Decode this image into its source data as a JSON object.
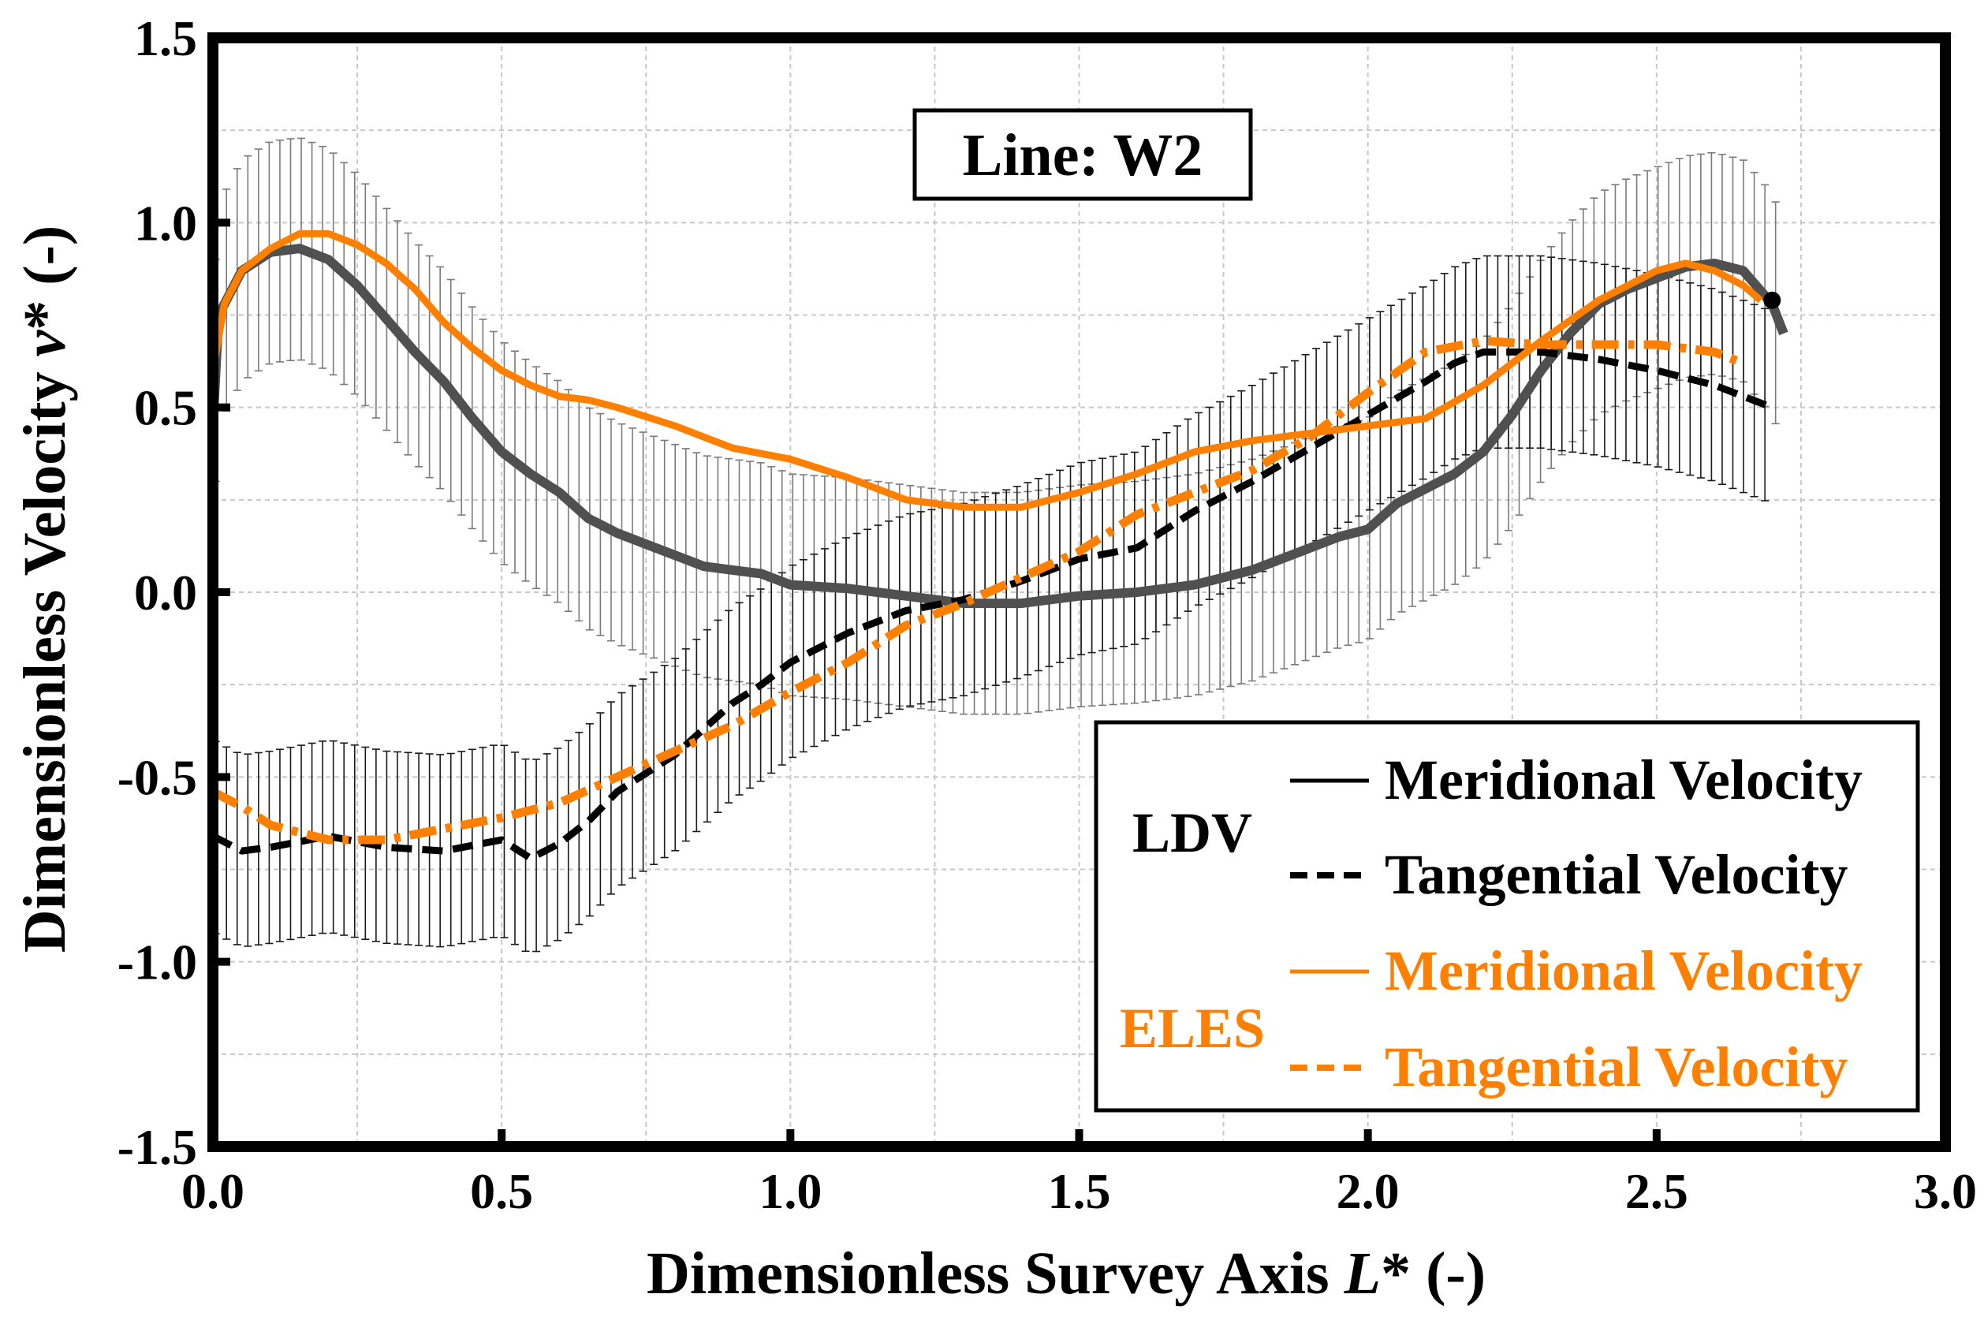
{
  "chart_data": {
    "type": "line",
    "annotation": "Line:  W2",
    "xlabel_main": "Dimensionless Survey Axis ",
    "xlabel_var": "L",
    "xlabel_tail": "* (-)",
    "ylabel_main": "Dimensionless Velocity ",
    "ylabel_var": "v",
    "ylabel_tail": "* (-)",
    "xlim": [
      0.0,
      3.0
    ],
    "ylim": [
      -1.5,
      1.5
    ],
    "x_ticks": [
      0.0,
      0.5,
      1.0,
      1.5,
      2.0,
      2.5,
      3.0
    ],
    "x_tick_labels": [
      "0.0",
      "0.5",
      "1.0",
      "1.5",
      "2.0",
      "2.5",
      "3.0"
    ],
    "y_ticks": [
      -1.5,
      -1.0,
      -0.5,
      0.0,
      0.5,
      1.0,
      1.5
    ],
    "y_tick_labels": [
      "-1.5",
      "-1.0",
      "-0.5",
      "0.0",
      "0.5",
      "1.0",
      "1.5"
    ],
    "grid": true,
    "legend": {
      "placement": "bottom-right",
      "groups": [
        {
          "label": "LDV",
          "color": "#000000",
          "entries": [
            "Meridional Velocity",
            "Tangential Velocity"
          ]
        },
        {
          "label": "ELES",
          "color": "#ff8000",
          "entries": [
            "Meridional Velocity",
            "Tangential Velocity"
          ]
        }
      ]
    },
    "series": [
      {
        "name": "LDV Meridional Velocity",
        "color": "#505050",
        "style": "solid",
        "error": 0.3,
        "points": [
          [
            0.0,
            0.45
          ],
          [
            0.01,
            0.75
          ],
          [
            0.05,
            0.87
          ],
          [
            0.1,
            0.92
          ],
          [
            0.15,
            0.93
          ],
          [
            0.2,
            0.9
          ],
          [
            0.25,
            0.83
          ],
          [
            0.3,
            0.74
          ],
          [
            0.35,
            0.65
          ],
          [
            0.4,
            0.57
          ],
          [
            0.45,
            0.47
          ],
          [
            0.5,
            0.38
          ],
          [
            0.55,
            0.32
          ],
          [
            0.6,
            0.27
          ],
          [
            0.65,
            0.2
          ],
          [
            0.7,
            0.16
          ],
          [
            0.75,
            0.13
          ],
          [
            0.8,
            0.1
          ],
          [
            0.85,
            0.07
          ],
          [
            0.9,
            0.06
          ],
          [
            0.95,
            0.05
          ],
          [
            1.0,
            0.02
          ],
          [
            1.1,
            0.01
          ],
          [
            1.2,
            -0.01
          ],
          [
            1.3,
            -0.03
          ],
          [
            1.4,
            -0.03
          ],
          [
            1.5,
            -0.01
          ],
          [
            1.6,
            0.0
          ],
          [
            1.7,
            0.02
          ],
          [
            1.8,
            0.06
          ],
          [
            1.9,
            0.12
          ],
          [
            1.95,
            0.15
          ],
          [
            2.0,
            0.17
          ],
          [
            2.05,
            0.24
          ],
          [
            2.1,
            0.28
          ],
          [
            2.15,
            0.32
          ],
          [
            2.2,
            0.38
          ],
          [
            2.25,
            0.48
          ],
          [
            2.3,
            0.6
          ],
          [
            2.35,
            0.7
          ],
          [
            2.4,
            0.78
          ],
          [
            2.45,
            0.82
          ],
          [
            2.5,
            0.85
          ],
          [
            2.55,
            0.88
          ],
          [
            2.6,
            0.89
          ],
          [
            2.65,
            0.87
          ],
          [
            2.7,
            0.78
          ],
          [
            2.72,
            0.7
          ]
        ]
      },
      {
        "name": "LDV Tangential Velocity",
        "color": "#000000",
        "style": "dashed",
        "error": 0.26,
        "points": [
          [
            0.0,
            -0.66
          ],
          [
            0.05,
            -0.7
          ],
          [
            0.1,
            -0.69
          ],
          [
            0.2,
            -0.66
          ],
          [
            0.3,
            -0.69
          ],
          [
            0.4,
            -0.7
          ],
          [
            0.5,
            -0.67
          ],
          [
            0.55,
            -0.72
          ],
          [
            0.6,
            -0.68
          ],
          [
            0.65,
            -0.62
          ],
          [
            0.7,
            -0.54
          ],
          [
            0.75,
            -0.49
          ],
          [
            0.8,
            -0.44
          ],
          [
            0.85,
            -0.37
          ],
          [
            0.9,
            -0.3
          ],
          [
            0.95,
            -0.25
          ],
          [
            1.0,
            -0.19
          ],
          [
            1.1,
            -0.11
          ],
          [
            1.2,
            -0.05
          ],
          [
            1.3,
            -0.02
          ],
          [
            1.4,
            0.03
          ],
          [
            1.5,
            0.09
          ],
          [
            1.6,
            0.12
          ],
          [
            1.7,
            0.22
          ],
          [
            1.8,
            0.3
          ],
          [
            1.9,
            0.39
          ],
          [
            2.0,
            0.48
          ],
          [
            2.1,
            0.57
          ],
          [
            2.15,
            0.62
          ],
          [
            2.2,
            0.65
          ],
          [
            2.3,
            0.65
          ],
          [
            2.4,
            0.63
          ],
          [
            2.5,
            0.6
          ],
          [
            2.6,
            0.56
          ],
          [
            2.7,
            0.5
          ]
        ]
      },
      {
        "name": "ELES Meridional Velocity",
        "color": "#ff8000",
        "style": "solid",
        "error": 0,
        "points": [
          [
            0.0,
            0.6
          ],
          [
            0.02,
            0.78
          ],
          [
            0.05,
            0.87
          ],
          [
            0.1,
            0.93
          ],
          [
            0.15,
            0.97
          ],
          [
            0.2,
            0.97
          ],
          [
            0.25,
            0.94
          ],
          [
            0.3,
            0.89
          ],
          [
            0.35,
            0.82
          ],
          [
            0.4,
            0.73
          ],
          [
            0.45,
            0.66
          ],
          [
            0.5,
            0.6
          ],
          [
            0.55,
            0.56
          ],
          [
            0.6,
            0.53
          ],
          [
            0.65,
            0.52
          ],
          [
            0.7,
            0.5
          ],
          [
            0.8,
            0.45
          ],
          [
            0.9,
            0.39
          ],
          [
            1.0,
            0.36
          ],
          [
            1.1,
            0.31
          ],
          [
            1.2,
            0.25
          ],
          [
            1.3,
            0.23
          ],
          [
            1.4,
            0.23
          ],
          [
            1.5,
            0.27
          ],
          [
            1.6,
            0.32
          ],
          [
            1.7,
            0.38
          ],
          [
            1.8,
            0.41
          ],
          [
            1.9,
            0.43
          ],
          [
            2.0,
            0.45
          ],
          [
            2.1,
            0.47
          ],
          [
            2.2,
            0.56
          ],
          [
            2.3,
            0.68
          ],
          [
            2.4,
            0.79
          ],
          [
            2.5,
            0.87
          ],
          [
            2.55,
            0.89
          ],
          [
            2.6,
            0.87
          ],
          [
            2.65,
            0.83
          ],
          [
            2.68,
            0.79
          ]
        ]
      },
      {
        "name": "ELES Tangential Velocity",
        "color": "#ff8000",
        "style": "dashdot",
        "error": 0,
        "points": [
          [
            0.0,
            -0.54
          ],
          [
            0.05,
            -0.58
          ],
          [
            0.1,
            -0.63
          ],
          [
            0.2,
            -0.67
          ],
          [
            0.3,
            -0.67
          ],
          [
            0.4,
            -0.64
          ],
          [
            0.5,
            -0.61
          ],
          [
            0.6,
            -0.57
          ],
          [
            0.7,
            -0.5
          ],
          [
            0.8,
            -0.43
          ],
          [
            0.9,
            -0.36
          ],
          [
            1.0,
            -0.27
          ],
          [
            1.1,
            -0.19
          ],
          [
            1.2,
            -0.09
          ],
          [
            1.3,
            -0.03
          ],
          [
            1.4,
            0.04
          ],
          [
            1.5,
            0.11
          ],
          [
            1.6,
            0.21
          ],
          [
            1.7,
            0.27
          ],
          [
            1.8,
            0.33
          ],
          [
            1.9,
            0.42
          ],
          [
            2.0,
            0.54
          ],
          [
            2.1,
            0.65
          ],
          [
            2.2,
            0.68
          ],
          [
            2.3,
            0.67
          ],
          [
            2.4,
            0.67
          ],
          [
            2.5,
            0.67
          ],
          [
            2.6,
            0.65
          ],
          [
            2.65,
            0.62
          ]
        ]
      }
    ]
  }
}
